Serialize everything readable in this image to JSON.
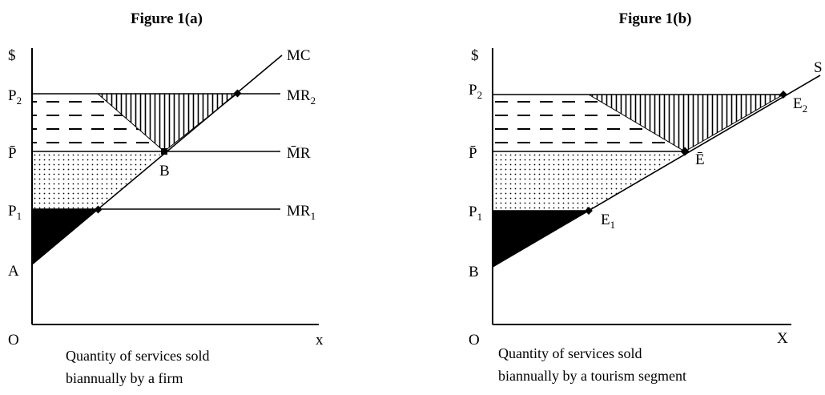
{
  "figure_a": {
    "title": "Figure 1(a)",
    "y_axis_label": "$",
    "origin_label": "O",
    "x_axis_label": "x",
    "price_labels": {
      "p2": "P",
      "p2_sub": "2",
      "pbar": "P̄",
      "p1": "P",
      "p1_sub": "1"
    },
    "intercept_label": "A",
    "supply_label": "MC",
    "curve_labels": {
      "mr2": "MR",
      "mr2_sub": "2",
      "mrbar": "M̄R",
      "mr1": "MR",
      "mr1_sub": "1"
    },
    "point_label": "B",
    "caption_line1": "Quantity of services sold",
    "caption_line2": "biannually by a firm"
  },
  "figure_b": {
    "title": "Figure 1(b)",
    "y_axis_label": "$",
    "origin_label": "O",
    "x_axis_label": "X",
    "price_labels": {
      "p2": "P",
      "p2_sub": "2",
      "pbar": "P̄",
      "p1": "P",
      "p1_sub": "1"
    },
    "intercept_label": "B",
    "supply_label": "S",
    "point_labels": {
      "e2": "E",
      "e2_sub": "2",
      "ebar": "Ē",
      "e1": "E",
      "e1_sub": "1"
    },
    "caption_line1": "Quantity of services sold",
    "caption_line2": "biannually by a tourism segment"
  }
}
